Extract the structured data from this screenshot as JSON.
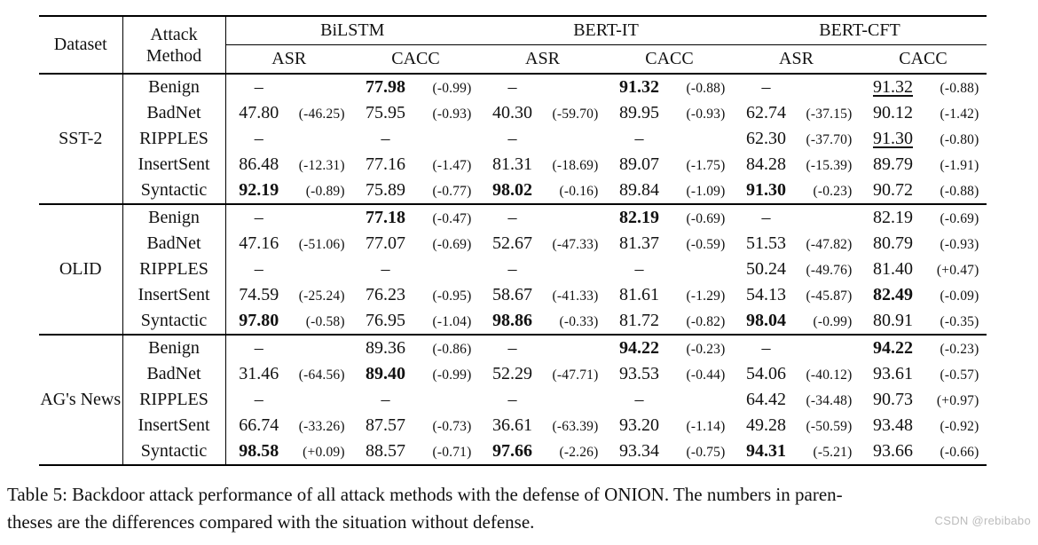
{
  "colors": {
    "text": "#111111",
    "rule": "#000000",
    "watermark": "#bcbcbc"
  },
  "table": {
    "header": {
      "dataset": "Dataset",
      "attack_method": "Attack\nMethod",
      "models": [
        "BiLSTM",
        "BERT-IT",
        "BERT-CFT"
      ],
      "sub_headers": [
        "ASR",
        "CACC"
      ]
    },
    "groups": [
      {
        "dataset": "SST-2",
        "rows": [
          {
            "method": "Benign",
            "cells": [
              {
                "v": "–",
                "d": "",
                "s": ""
              },
              {
                "v": "77.98",
                "d": "(-0.99)",
                "s": "bold"
              },
              {
                "v": "–",
                "d": "",
                "s": ""
              },
              {
                "v": "91.32",
                "d": "(-0.88)",
                "s": "bold"
              },
              {
                "v": "–",
                "d": "",
                "s": ""
              },
              {
                "v": "91.32",
                "d": "(-0.88)",
                "s": "underline"
              }
            ]
          },
          {
            "method": "BadNet",
            "cells": [
              {
                "v": "47.80",
                "d": "(-46.25)",
                "s": ""
              },
              {
                "v": "75.95",
                "d": "(-0.93)",
                "s": ""
              },
              {
                "v": "40.30",
                "d": "(-59.70)",
                "s": ""
              },
              {
                "v": "89.95",
                "d": "(-0.93)",
                "s": ""
              },
              {
                "v": "62.74",
                "d": "(-37.15)",
                "s": ""
              },
              {
                "v": "90.12",
                "d": "(-1.42)",
                "s": ""
              }
            ]
          },
          {
            "method": "RIPPLES",
            "cells": [
              {
                "v": "–",
                "d": "",
                "s": ""
              },
              {
                "v": "–",
                "d": "",
                "s": ""
              },
              {
                "v": "–",
                "d": "",
                "s": ""
              },
              {
                "v": "–",
                "d": "",
                "s": ""
              },
              {
                "v": "62.30",
                "d": "(-37.70)",
                "s": ""
              },
              {
                "v": "91.30",
                "d": "(-0.80)",
                "s": "underline"
              }
            ]
          },
          {
            "method": "InsertSent",
            "cells": [
              {
                "v": "86.48",
                "d": "(-12.31)",
                "s": ""
              },
              {
                "v": "77.16",
                "d": "(-1.47)",
                "s": ""
              },
              {
                "v": "81.31",
                "d": "(-18.69)",
                "s": ""
              },
              {
                "v": "89.07",
                "d": "(-1.75)",
                "s": ""
              },
              {
                "v": "84.28",
                "d": "(-15.39)",
                "s": ""
              },
              {
                "v": "89.79",
                "d": "(-1.91)",
                "s": ""
              }
            ]
          },
          {
            "method": "Syntactic",
            "cells": [
              {
                "v": "92.19",
                "d": "(-0.89)",
                "s": "bold"
              },
              {
                "v": "75.89",
                "d": "(-0.77)",
                "s": ""
              },
              {
                "v": "98.02",
                "d": "(-0.16)",
                "s": "bold"
              },
              {
                "v": "89.84",
                "d": "(-1.09)",
                "s": ""
              },
              {
                "v": "91.30",
                "d": "(-0.23)",
                "s": "bold"
              },
              {
                "v": "90.72",
                "d": "(-0.88)",
                "s": ""
              }
            ]
          }
        ]
      },
      {
        "dataset": "OLID",
        "rows": [
          {
            "method": "Benign",
            "cells": [
              {
                "v": "–",
                "d": "",
                "s": ""
              },
              {
                "v": "77.18",
                "d": "(-0.47)",
                "s": "bold"
              },
              {
                "v": "–",
                "d": "",
                "s": ""
              },
              {
                "v": "82.19",
                "d": "(-0.69)",
                "s": "bold"
              },
              {
                "v": "–",
                "d": "",
                "s": ""
              },
              {
                "v": "82.19",
                "d": "(-0.69)",
                "s": ""
              }
            ]
          },
          {
            "method": "BadNet",
            "cells": [
              {
                "v": "47.16",
                "d": "(-51.06)",
                "s": ""
              },
              {
                "v": "77.07",
                "d": "(-0.69)",
                "s": ""
              },
              {
                "v": "52.67",
                "d": "(-47.33)",
                "s": ""
              },
              {
                "v": "81.37",
                "d": "(-0.59)",
                "s": ""
              },
              {
                "v": "51.53",
                "d": "(-47.82)",
                "s": ""
              },
              {
                "v": "80.79",
                "d": "(-0.93)",
                "s": ""
              }
            ]
          },
          {
            "method": "RIPPLES",
            "cells": [
              {
                "v": "–",
                "d": "",
                "s": ""
              },
              {
                "v": "–",
                "d": "",
                "s": ""
              },
              {
                "v": "–",
                "d": "",
                "s": ""
              },
              {
                "v": "–",
                "d": "",
                "s": ""
              },
              {
                "v": "50.24",
                "d": "(-49.76)",
                "s": ""
              },
              {
                "v": "81.40",
                "d": "(+0.47)",
                "s": ""
              }
            ]
          },
          {
            "method": "InsertSent",
            "cells": [
              {
                "v": "74.59",
                "d": "(-25.24)",
                "s": ""
              },
              {
                "v": "76.23",
                "d": "(-0.95)",
                "s": ""
              },
              {
                "v": "58.67",
                "d": "(-41.33)",
                "s": ""
              },
              {
                "v": "81.61",
                "d": "(-1.29)",
                "s": ""
              },
              {
                "v": "54.13",
                "d": "(-45.87)",
                "s": ""
              },
              {
                "v": "82.49",
                "d": "(-0.09)",
                "s": "bold"
              }
            ]
          },
          {
            "method": "Syntactic",
            "cells": [
              {
                "v": "97.80",
                "d": "(-0.58)",
                "s": "bold"
              },
              {
                "v": "76.95",
                "d": "(-1.04)",
                "s": ""
              },
              {
                "v": "98.86",
                "d": "(-0.33)",
                "s": "bold"
              },
              {
                "v": "81.72",
                "d": "(-0.82)",
                "s": ""
              },
              {
                "v": "98.04",
                "d": "(-0.99)",
                "s": "bold"
              },
              {
                "v": "80.91",
                "d": "(-0.35)",
                "s": ""
              }
            ]
          }
        ]
      },
      {
        "dataset": "AG's News",
        "rows": [
          {
            "method": "Benign",
            "cells": [
              {
                "v": "–",
                "d": "",
                "s": ""
              },
              {
                "v": "89.36",
                "d": "(-0.86)",
                "s": ""
              },
              {
                "v": "–",
                "d": "",
                "s": ""
              },
              {
                "v": "94.22",
                "d": "(-0.23)",
                "s": "bold"
              },
              {
                "v": "–",
                "d": "",
                "s": ""
              },
              {
                "v": "94.22",
                "d": "(-0.23)",
                "s": "bold"
              }
            ]
          },
          {
            "method": "BadNet",
            "cells": [
              {
                "v": "31.46",
                "d": "(-64.56)",
                "s": ""
              },
              {
                "v": "89.40",
                "d": "(-0.99)",
                "s": "bold"
              },
              {
                "v": "52.29",
                "d": "(-47.71)",
                "s": ""
              },
              {
                "v": "93.53",
                "d": "(-0.44)",
                "s": ""
              },
              {
                "v": "54.06",
                "d": "(-40.12)",
                "s": ""
              },
              {
                "v": "93.61",
                "d": "(-0.57)",
                "s": ""
              }
            ]
          },
          {
            "method": "RIPPLES",
            "cells": [
              {
                "v": "–",
                "d": "",
                "s": ""
              },
              {
                "v": "–",
                "d": "",
                "s": ""
              },
              {
                "v": "–",
                "d": "",
                "s": ""
              },
              {
                "v": "–",
                "d": "",
                "s": ""
              },
              {
                "v": "64.42",
                "d": "(-34.48)",
                "s": ""
              },
              {
                "v": "90.73",
                "d": "(+0.97)",
                "s": ""
              }
            ]
          },
          {
            "method": "InsertSent",
            "cells": [
              {
                "v": "66.74",
                "d": "(-33.26)",
                "s": ""
              },
              {
                "v": "87.57",
                "d": "(-0.73)",
                "s": ""
              },
              {
                "v": "36.61",
                "d": "(-63.39)",
                "s": ""
              },
              {
                "v": "93.20",
                "d": "(-1.14)",
                "s": ""
              },
              {
                "v": "49.28",
                "d": "(-50.59)",
                "s": ""
              },
              {
                "v": "93.48",
                "d": "(-0.92)",
                "s": ""
              }
            ]
          },
          {
            "method": "Syntactic",
            "cells": [
              {
                "v": "98.58",
                "d": "(+0.09)",
                "s": "bold"
              },
              {
                "v": "88.57",
                "d": "(-0.71)",
                "s": ""
              },
              {
                "v": "97.66",
                "d": "(-2.26)",
                "s": "bold"
              },
              {
                "v": "93.34",
                "d": "(-0.75)",
                "s": ""
              },
              {
                "v": "94.31",
                "d": "(-5.21)",
                "s": "bold"
              },
              {
                "v": "93.66",
                "d": "(-0.66)",
                "s": ""
              }
            ]
          }
        ]
      }
    ]
  },
  "caption": {
    "line1": "Table 5: Backdoor attack performance of all attack methods with the defense of ONION. The numbers in paren-",
    "line2": "theses are the differences compared with the situation without defense."
  },
  "watermark": "CSDN @rebibabo"
}
